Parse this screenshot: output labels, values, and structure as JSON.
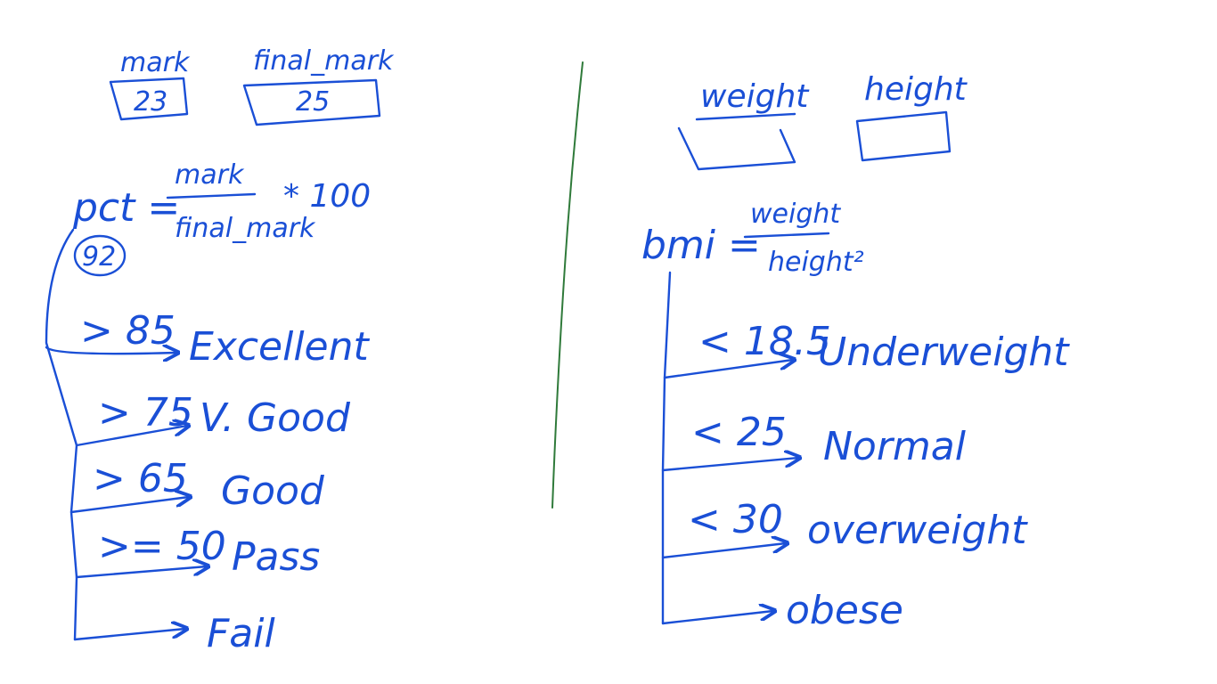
{
  "ink_color": "#1a4fd6",
  "divider_color": "#2f7a3a",
  "left": {
    "var_mark": {
      "label": "mark",
      "value": "23"
    },
    "var_final_mark": {
      "label": "final_mark",
      "value": "25"
    },
    "formula": {
      "lhs": "pct =",
      "numerator": "mark",
      "denominator": "final_mark",
      "multiplier": "* 100"
    },
    "result": "92",
    "branches": [
      {
        "condition": "> 85",
        "outcome": "Excellent"
      },
      {
        "condition": "> 75",
        "outcome": "V. Good"
      },
      {
        "condition": "> 65",
        "outcome": "Good"
      },
      {
        "condition": ">= 50",
        "outcome": "Pass"
      },
      {
        "condition": "",
        "outcome": "Fail"
      }
    ]
  },
  "right": {
    "var_weight": {
      "label": "weight"
    },
    "var_height": {
      "label": "height"
    },
    "formula": {
      "lhs": "bmi =",
      "numerator": "weight",
      "denominator": "height²"
    },
    "branches": [
      {
        "condition": "< 18.5",
        "outcome": "Underweight"
      },
      {
        "condition": "< 25",
        "outcome": "Normal"
      },
      {
        "condition": "< 30",
        "outcome": "overweight"
      },
      {
        "condition": "",
        "outcome": "obese"
      }
    ]
  }
}
